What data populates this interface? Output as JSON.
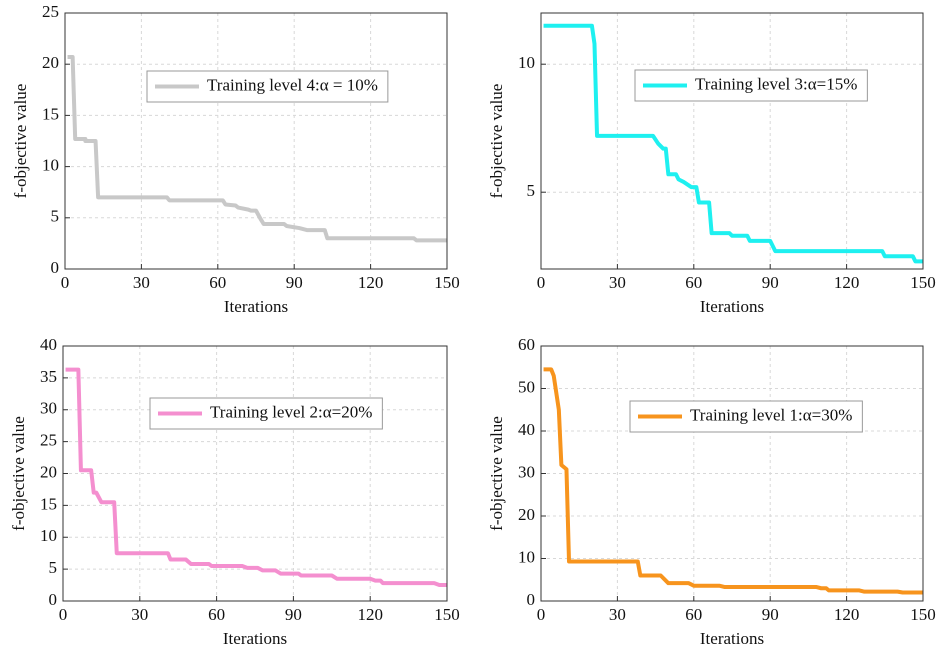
{
  "chart_data": [
    {
      "type": "line",
      "xlabel": "Iterations",
      "ylabel": "f-objective value",
      "xlim": [
        0,
        150
      ],
      "xticks": [
        0,
        30,
        60,
        90,
        120,
        150
      ],
      "ylim": [
        0,
        25
      ],
      "yticks": [
        0,
        5,
        10,
        15,
        20,
        25
      ],
      "grid": true,
      "x": [
        1,
        3,
        4,
        8,
        8,
        12,
        13,
        40,
        41,
        62,
        63,
        67,
        68,
        72,
        73,
        75,
        77,
        78,
        86,
        87,
        92,
        95,
        102,
        103,
        137,
        138,
        150
      ],
      "series": [
        {
          "name": "Training level 4:α = 10%",
          "color": "#c8c8c8",
          "values": [
            20.7,
            20.7,
            12.7,
            12.7,
            12.5,
            12.5,
            7,
            7,
            6.7,
            6.7,
            6.3,
            6.2,
            6,
            5.8,
            5.7,
            5.7,
            4.8,
            4.4,
            4.4,
            4.2,
            4,
            3.8,
            3.8,
            3,
            3,
            2.8,
            2.8
          ]
        }
      ]
    },
    {
      "type": "line",
      "xlabel": "Iterations",
      "ylabel": "f-objective value",
      "xlim": [
        0,
        150
      ],
      "xticks": [
        0,
        30,
        60,
        90,
        120,
        150
      ],
      "ylim": [
        2,
        12
      ],
      "yticks": [
        5,
        10
      ],
      "grid": true,
      "x": [
        1,
        20,
        21,
        22,
        44,
        46,
        48,
        49,
        50,
        53,
        54,
        56,
        59,
        61,
        62,
        66,
        67,
        74,
        75,
        81,
        82,
        90,
        92,
        134,
        135,
        146,
        147,
        150
      ],
      "series": [
        {
          "name": "Training level 3:α=15%",
          "color": "#1ef0f0",
          "values": [
            11.5,
            11.5,
            10.8,
            7.2,
            7.2,
            6.9,
            6.7,
            6.7,
            5.7,
            5.7,
            5.5,
            5.4,
            5.2,
            5.2,
            4.6,
            4.6,
            3.4,
            3.4,
            3.3,
            3.3,
            3.1,
            3.1,
            2.7,
            2.7,
            2.5,
            2.5,
            2.3,
            2.3
          ]
        }
      ]
    },
    {
      "type": "line",
      "xlabel": "Iterations",
      "ylabel": "f-objective value",
      "xlim": [
        0,
        150
      ],
      "xticks": [
        0,
        30,
        60,
        90,
        120,
        150
      ],
      "ylim": [
        0,
        40
      ],
      "yticks": [
        0,
        5,
        10,
        15,
        20,
        25,
        30,
        35,
        40
      ],
      "grid": true,
      "x": [
        1,
        6,
        7,
        11,
        12,
        13,
        15,
        20,
        21,
        41,
        42,
        48,
        50,
        57,
        58,
        70,
        72,
        76,
        78,
        83,
        85,
        92,
        93,
        105,
        107,
        120,
        122,
        124,
        125,
        145,
        147,
        150
      ],
      "series": [
        {
          "name": "Training level 2:α=20%",
          "color": "#f48fcf",
          "values": [
            36.3,
            36.3,
            20.5,
            20.5,
            17,
            17,
            15.5,
            15.5,
            7.5,
            7.5,
            6.5,
            6.5,
            5.8,
            5.8,
            5.5,
            5.5,
            5.2,
            5.2,
            4.8,
            4.8,
            4.3,
            4.3,
            4,
            4,
            3.5,
            3.5,
            3.2,
            3.2,
            2.8,
            2.8,
            2.5,
            2.5
          ]
        }
      ]
    },
    {
      "type": "line",
      "xlabel": "Iterations",
      "ylabel": "f-objective value",
      "xlim": [
        0,
        150
      ],
      "xticks": [
        0,
        30,
        60,
        90,
        120,
        150
      ],
      "ylim": [
        0,
        60
      ],
      "yticks": [
        0,
        10,
        20,
        30,
        40,
        50,
        60
      ],
      "grid": true,
      "x": [
        1,
        4,
        5,
        7,
        8,
        10,
        11,
        38,
        39,
        47,
        50,
        58,
        60,
        70,
        72,
        108,
        110,
        112,
        113,
        125,
        127,
        140,
        142,
        150
      ],
      "series": [
        {
          "name": "Training level 1:α=30%",
          "color": "#f7941d",
          "values": [
            54.5,
            54.5,
            53,
            45,
            32,
            31,
            9.3,
            9.3,
            6,
            6,
            4.2,
            4.2,
            3.6,
            3.6,
            3.3,
            3.3,
            3,
            3,
            2.5,
            2.5,
            2.2,
            2.2,
            2,
            2
          ]
        }
      ]
    }
  ]
}
